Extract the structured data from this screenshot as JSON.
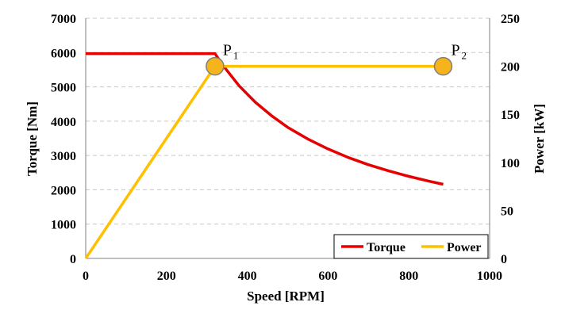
{
  "chart_data": {
    "type": "line",
    "xlabel": "Speed [RPM]",
    "ylabel_left": "Torque [Nm]",
    "ylabel_right": "Power [kW]",
    "xlim": [
      0,
      1000
    ],
    "ylim_left": [
      0,
      7000
    ],
    "ylim_right": [
      0,
      250
    ],
    "x_ticks": [
      "0",
      "200",
      "400",
      "600",
      "800",
      "1000"
    ],
    "y_ticks_left": [
      "0",
      "1000",
      "2000",
      "3000",
      "4000",
      "5000",
      "6000",
      "7000"
    ],
    "y_ticks_right": [
      "0",
      "50",
      "100",
      "150",
      "200",
      "250"
    ],
    "grid": "horizontal dashed",
    "legend_position": "bottom-right",
    "series": [
      {
        "name": "Torque",
        "axis": "left",
        "color": "#e60000",
        "x": [
          0,
          320,
          340,
          380,
          420,
          460,
          500,
          550,
          600,
          650,
          700,
          750,
          800,
          850,
          885
        ],
        "y": [
          5970,
          5970,
          5620,
          5030,
          4550,
          4160,
          3820,
          3480,
          3190,
          2940,
          2730,
          2550,
          2390,
          2250,
          2160
        ]
      },
      {
        "name": "Power",
        "axis": "right",
        "color": "#ffc000",
        "x": [
          0,
          320,
          885
        ],
        "y": [
          0,
          200,
          200
        ]
      }
    ],
    "points": [
      {
        "label": "P",
        "sub": "1",
        "x": 320,
        "y_right": 200
      },
      {
        "label": "P",
        "sub": "2",
        "x": 885,
        "y_right": 200
      }
    ],
    "marker_color": "#f5b31c"
  }
}
